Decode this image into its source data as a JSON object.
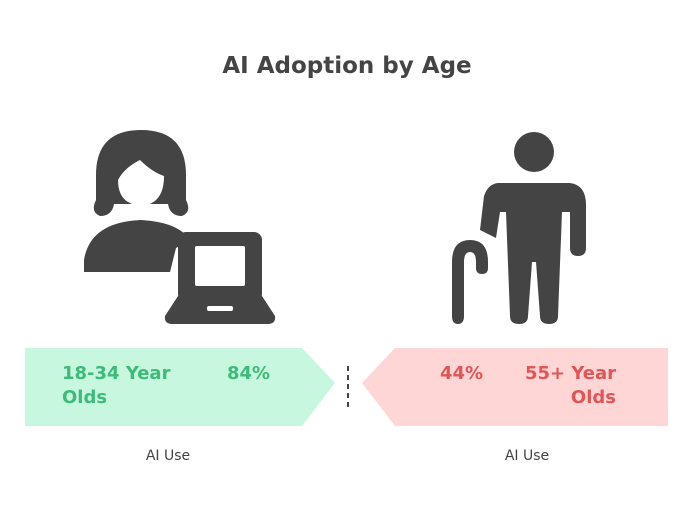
{
  "title": "AI Adoption by Age",
  "groups": [
    {
      "label": "18-34 Year Olds",
      "value": "84%",
      "caption": "AI Use"
    },
    {
      "label": "55+ Year Olds",
      "value": "44%",
      "caption": "AI Use"
    }
  ]
}
